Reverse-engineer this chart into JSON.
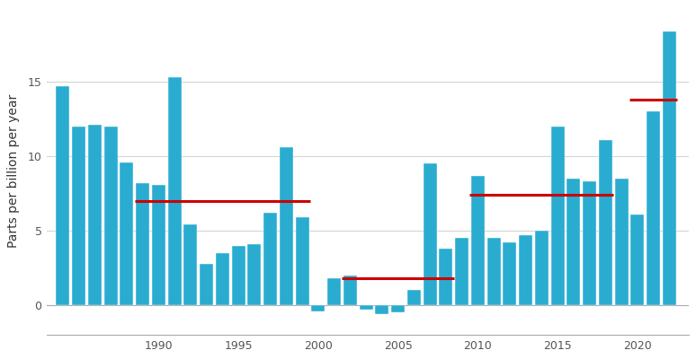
{
  "years": [
    1984,
    1985,
    1986,
    1987,
    1988,
    1989,
    1990,
    1991,
    1992,
    1993,
    1994,
    1995,
    1996,
    1997,
    1998,
    1999,
    2000,
    2001,
    2002,
    2003,
    2004,
    2005,
    2006,
    2007,
    2008,
    2009,
    2010,
    2011,
    2012,
    2013,
    2014,
    2015,
    2016,
    2017,
    2018,
    2019,
    2020,
    2021,
    2022
  ],
  "values": [
    14.7,
    12.0,
    12.1,
    12.0,
    9.6,
    8.2,
    8.1,
    15.3,
    5.4,
    2.8,
    3.5,
    4.0,
    4.1,
    6.2,
    10.6,
    5.9,
    -0.4,
    1.8,
    2.0,
    -0.3,
    -0.6,
    -0.5,
    1.0,
    9.5,
    3.8,
    4.5,
    8.7,
    4.5,
    4.2,
    4.7,
    5.0,
    12.0,
    8.5,
    8.3,
    11.1,
    8.5,
    6.1,
    13.0,
    18.4
  ],
  "bar_color": "#29acd0",
  "red_line_color": "#cc0000",
  "red_lines": [
    {
      "x_start": 1988.5,
      "x_end": 1999.5,
      "y": 7.0
    },
    {
      "x_start": 2001.5,
      "x_end": 2008.5,
      "y": 1.8
    },
    {
      "x_start": 2009.5,
      "x_end": 2018.5,
      "y": 7.4
    },
    {
      "x_start": 2019.5,
      "x_end": 2022.5,
      "y": 13.8
    }
  ],
  "ylabel": "Parts per billion per year",
  "xticks": [
    1990,
    1995,
    2000,
    2005,
    2010,
    2015,
    2020
  ],
  "yticks": [
    0,
    5,
    10,
    15
  ],
  "ylim": [
    -2,
    20
  ],
  "xlim": [
    1983.0,
    2023.2
  ],
  "background_color": "#ffffff",
  "grid_color": "#d0d0d0",
  "ylabel_fontsize": 10,
  "tick_fontsize": 9,
  "bar_width": 0.85
}
